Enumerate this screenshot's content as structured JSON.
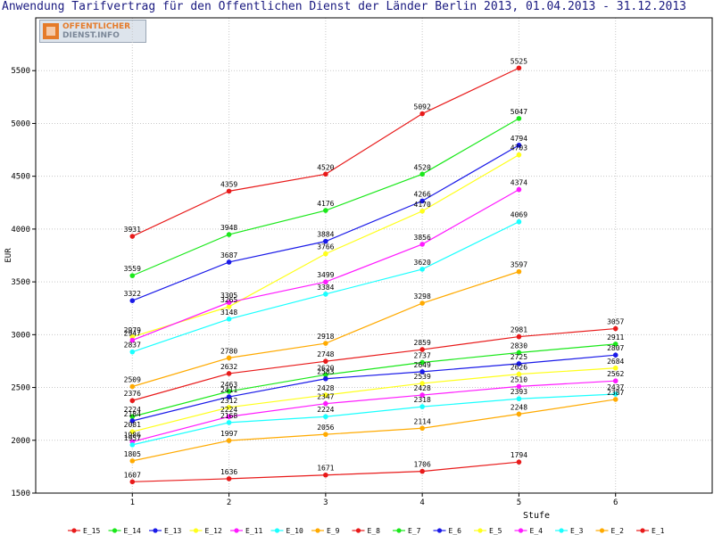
{
  "header": {
    "title": "Anwendung Tarifvertrag für den Öffentlichen Dienst der Länder Berlin 2013, 01.04.2013 - 31.12.2013",
    "logo_line1": "OFFENTLICHER",
    "logo_line2": "DIENST.INFO"
  },
  "chart_data": {
    "type": "line",
    "title": "Anwendung Tarifvertrag für den Öffentlichen Dienst der Länder Berlin 2013, 01.04.2013 - 31.12.2013",
    "xlabel": "Stufe",
    "ylabel": "EUR",
    "x": [
      1,
      2,
      3,
      4,
      5,
      6
    ],
    "xlim": [
      0,
      7
    ],
    "ylim": [
      1500,
      6000
    ],
    "yticks": [
      1500,
      2000,
      2500,
      3000,
      3500,
      4000,
      4500,
      5000,
      5500
    ],
    "grid": true,
    "legend_position": "bottom",
    "series": [
      {
        "name": "E_15",
        "color": "#e81a1a",
        "values": [
          3931,
          4359,
          4520,
          5092,
          5525,
          null
        ]
      },
      {
        "name": "E_14",
        "color": "#1ae81a",
        "values": [
          3559,
          3948,
          4176,
          4520,
          5047,
          null
        ]
      },
      {
        "name": "E_13",
        "color": "#1a1ae8",
        "values": [
          3322,
          3687,
          3884,
          4266,
          4794,
          null
        ]
      },
      {
        "name": "E_12",
        "color": "#ffff1a",
        "values": [
          2979,
          3265,
          3766,
          4170,
          4703,
          null
        ]
      },
      {
        "name": "E_11",
        "color": "#ff1aff",
        "values": [
          2947,
          3305,
          3499,
          3856,
          4374,
          null
        ]
      },
      {
        "name": "E_10",
        "color": "#1affff",
        "values": [
          2837,
          3148,
          3384,
          3620,
          4069,
          null
        ]
      },
      {
        "name": "E_9",
        "color": "#ffaa00",
        "values": [
          2509,
          2780,
          2918,
          3298,
          3597,
          null
        ]
      },
      {
        "name": "E_8",
        "color": "#e81a1a",
        "values": [
          2376,
          2632,
          2748,
          2859,
          2981,
          3057
        ]
      },
      {
        "name": "E_7",
        "color": "#1ae81a",
        "values": [
          2224,
          2463,
          2620,
          2737,
          2830,
          2911
        ]
      },
      {
        "name": "E_6",
        "color": "#1a1ae8",
        "values": [
          2184,
          2411,
          2583,
          2649,
          2725,
          2807
        ]
      },
      {
        "name": "E_5",
        "color": "#ffff1a",
        "values": [
          2081,
          2312,
          2428,
          2539,
          2626,
          2684
        ]
      },
      {
        "name": "E_4",
        "color": "#ff1aff",
        "values": [
          1986,
          2224,
          2347,
          2428,
          2510,
          2562
        ]
      },
      {
        "name": "E_3",
        "color": "#1affff",
        "values": [
          1957,
          2168,
          2224,
          2318,
          2393,
          2437
        ]
      },
      {
        "name": "E_2",
        "color": "#ffaa00",
        "values": [
          1805,
          1997,
          2056,
          2114,
          2248,
          2387
        ]
      },
      {
        "name": "E_1",
        "color": "#e81a1a",
        "values": [
          1607,
          1636,
          1671,
          1706,
          1794,
          null
        ]
      }
    ]
  }
}
